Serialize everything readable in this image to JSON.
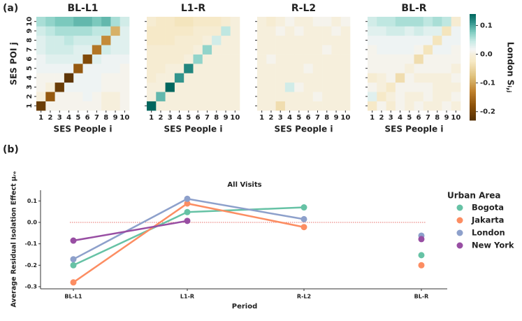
{
  "chart_data": [
    {
      "type": "heatmap",
      "panel_label": "(a)",
      "xlabel": "SES People i",
      "ylabel": "SES POI j",
      "x_categories": [
        1,
        2,
        3,
        4,
        5,
        6,
        7,
        8,
        9,
        10
      ],
      "y_categories": [
        1,
        2,
        3,
        4,
        5,
        6,
        7,
        8,
        9,
        10
      ],
      "colormap": [
        "#543005",
        "#8c510a",
        "#bf812d",
        "#dfc27d",
        "#f6e8c3",
        "#f5f5f5",
        "#c7eae5",
        "#80cdc1",
        "#35978f",
        "#01665e"
      ],
      "clim": [
        -0.23,
        0.14
      ],
      "colorbar_label": "London Sᵢ,ⱼ",
      "colorbar_ticks": [
        -0.2,
        -0.1,
        {
          "value": 0,
          "label": "0.0"
        },
        0.1
      ],
      "panels": [
        {
          "title": "BL-L1",
          "values": [
            [
              -0.21,
              0.01,
              0.01,
              0.01,
              0.01,
              0.01,
              0.01,
              0.0,
              0.0,
              0.01
            ],
            [
              0.0,
              -0.17,
              0.01,
              0.01,
              0.01,
              0.02,
              0.01,
              0.0,
              0.0,
              0.01
            ],
            [
              0.01,
              0.0,
              -0.21,
              0.02,
              0.02,
              0.02,
              0.02,
              0.01,
              0.01,
              0.01
            ],
            [
              0.01,
              0.01,
              0.01,
              -0.22,
              0.02,
              0.02,
              0.02,
              0.01,
              0.01,
              0.01
            ],
            [
              0.02,
              0.02,
              0.02,
              0.02,
              -0.17,
              0.02,
              0.02,
              0.02,
              0.02,
              0.01
            ],
            [
              0.02,
              0.03,
              0.03,
              0.03,
              0.03,
              -0.19,
              0.03,
              0.02,
              0.02,
              0.02
            ],
            [
              0.03,
              0.04,
              0.04,
              0.04,
              0.03,
              0.03,
              -0.14,
              0.04,
              0.03,
              0.03
            ],
            [
              0.03,
              0.04,
              0.04,
              0.05,
              0.04,
              0.04,
              0.04,
              -0.12,
              0.03,
              0.03
            ],
            [
              0.04,
              0.05,
              0.06,
              0.06,
              0.06,
              0.06,
              0.05,
              0.05,
              -0.09,
              0.03
            ],
            [
              0.06,
              0.07,
              0.08,
              0.08,
              0.09,
              0.09,
              0.08,
              0.09,
              0.06,
              0.04
            ]
          ]
        },
        {
          "title": "L1-R",
          "values": [
            [
              0.15,
              0.0,
              0.0,
              0.0,
              0.0,
              0.0,
              0.0,
              0.0,
              0.0,
              0.0
            ],
            [
              0.0,
              0.09,
              0.0,
              0.0,
              0.0,
              0.0,
              0.0,
              0.0,
              0.0,
              0.0
            ],
            [
              0.0,
              0.0,
              0.14,
              0.0,
              0.0,
              0.0,
              0.0,
              0.0,
              0.0,
              0.0
            ],
            [
              -0.01,
              0.0,
              0.0,
              0.11,
              0.0,
              0.0,
              0.0,
              0.0,
              0.0,
              0.0
            ],
            [
              -0.01,
              -0.01,
              0.0,
              0.0,
              0.12,
              0.0,
              0.0,
              0.0,
              0.0,
              0.0
            ],
            [
              -0.01,
              -0.01,
              -0.01,
              -0.01,
              0.0,
              0.07,
              0.0,
              0.0,
              0.0,
              0.0
            ],
            [
              -0.01,
              -0.01,
              -0.01,
              -0.01,
              -0.01,
              0.0,
              0.07,
              0.0,
              0.0,
              0.0
            ],
            [
              -0.02,
              -0.02,
              -0.02,
              -0.01,
              -0.01,
              -0.01,
              0.0,
              0.04,
              0.0,
              0.0
            ],
            [
              -0.02,
              -0.02,
              -0.02,
              -0.02,
              -0.02,
              -0.01,
              -0.01,
              -0.01,
              0.05,
              0.0
            ],
            [
              -0.01,
              -0.02,
              -0.02,
              -0.03,
              -0.03,
              -0.02,
              -0.02,
              -0.02,
              -0.01,
              0.0
            ]
          ]
        },
        {
          "title": "R-L2",
          "values": [
            [
              0.0,
              0.0,
              -0.04,
              0.0,
              0.0,
              0.0,
              0.0,
              0.0,
              0.0,
              0.0
            ],
            [
              0.0,
              0.0,
              0.0,
              0.0,
              0.0,
              0.0,
              0.01,
              0.0,
              0.0,
              0.0
            ],
            [
              0.0,
              0.0,
              0.0,
              0.04,
              0.01,
              0.0,
              0.0,
              0.0,
              0.0,
              0.0
            ],
            [
              0.0,
              0.0,
              0.0,
              0.0,
              0.0,
              0.0,
              0.0,
              0.0,
              0.0,
              0.0
            ],
            [
              0.0,
              0.0,
              0.0,
              0.0,
              0.0,
              0.01,
              0.0,
              0.0,
              0.0,
              0.0
            ],
            [
              0.0,
              0.01,
              0.0,
              0.0,
              0.0,
              0.0,
              0.0,
              0.0,
              0.0,
              0.0
            ],
            [
              0.0,
              0.0,
              0.0,
              0.0,
              0.0,
              0.0,
              0.0,
              0.01,
              0.0,
              0.0
            ],
            [
              0.0,
              0.0,
              0.0,
              0.0,
              0.0,
              0.0,
              0.0,
              0.0,
              0.0,
              0.0
            ],
            [
              0.0,
              0.0,
              0.01,
              0.0,
              0.01,
              0.0,
              0.0,
              0.0,
              0.01,
              0.0
            ],
            [
              0.0,
              -0.01,
              0.0,
              0.01,
              0.0,
              0.0,
              0.01,
              0.01,
              0.0,
              0.01
            ]
          ]
        },
        {
          "title": "BL-R",
          "values": [
            [
              -0.02,
              0.01,
              -0.01,
              0.01,
              0.0,
              0.01,
              0.0,
              0.0,
              0.01,
              0.0
            ],
            [
              0.03,
              -0.02,
              0.0,
              0.01,
              0.0,
              0.0,
              0.01,
              0.0,
              0.0,
              0.01
            ],
            [
              0.01,
              0.0,
              -0.02,
              0.01,
              0.01,
              0.01,
              0.01,
              0.0,
              0.0,
              0.0
            ],
            [
              -0.01,
              0.0,
              0.01,
              -0.04,
              0.01,
              0.0,
              0.0,
              0.0,
              0.0,
              0.01
            ],
            [
              0.01,
              0.01,
              0.01,
              0.01,
              0.0,
              0.01,
              0.01,
              0.01,
              0.01,
              0.0
            ],
            [
              0.01,
              0.01,
              0.01,
              0.01,
              0.01,
              -0.04,
              0.01,
              0.01,
              0.01,
              0.01
            ],
            [
              0.01,
              0.02,
              0.02,
              0.02,
              0.02,
              0.01,
              -0.03,
              0.02,
              0.02,
              0.01
            ],
            [
              0.02,
              0.02,
              0.02,
              0.02,
              0.02,
              0.02,
              0.02,
              -0.03,
              0.02,
              0.02
            ],
            [
              0.03,
              0.03,
              0.04,
              0.04,
              0.03,
              0.04,
              0.03,
              0.03,
              -0.03,
              0.02
            ],
            [
              0.04,
              0.05,
              0.05,
              0.06,
              0.06,
              0.06,
              0.05,
              0.06,
              0.05,
              -0.01
            ]
          ]
        }
      ]
    },
    {
      "type": "line",
      "panel_label": "(b)",
      "title": "All Visits",
      "xlabel": "Period",
      "ylabel": "Average Residual Isolation Effect μᵣₑ",
      "categories": [
        "BL-L1",
        "L1-R",
        "R-L2",
        "BL-R"
      ],
      "unjoined": [
        "BL-R"
      ],
      "ylim": [
        -0.31,
        0.15
      ],
      "yticks": [
        -0.3,
        -0.2,
        -0.1,
        {
          "value": 0,
          "label": "0.0"
        },
        0.1
      ],
      "zero_line": true,
      "zero_line_color": "#e0403a",
      "legend_title": "Urban Area",
      "legend": "right",
      "series": [
        {
          "name": "Bogota",
          "color": "#66c2a5",
          "values": [
            -0.2,
            0.048,
            0.07,
            -0.153
          ]
        },
        {
          "name": "Jakarta",
          "color": "#fc8d62",
          "values": [
            -0.28,
            0.088,
            -0.022,
            -0.2
          ]
        },
        {
          "name": "London",
          "color": "#8da0cb",
          "values": [
            -0.172,
            0.11,
            0.015,
            -0.062
          ]
        },
        {
          "name": "New York",
          "color": "#984ea3",
          "values": [
            -0.085,
            0.007,
            null,
            -0.078
          ]
        }
      ]
    }
  ]
}
